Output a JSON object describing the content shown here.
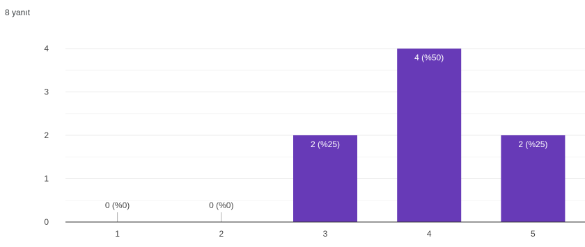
{
  "summary": {
    "responses": "8 yanıt"
  },
  "chart_data": {
    "type": "bar",
    "categories": [
      "1",
      "2",
      "3",
      "4",
      "5"
    ],
    "values": [
      0,
      0,
      2,
      4,
      2
    ],
    "data_labels": [
      "0 (%0)",
      "0 (%0)",
      "2 (%25)",
      "4 (%50)",
      "2 (%25)"
    ],
    "yticks": [
      "0",
      "1",
      "2",
      "3",
      "4"
    ],
    "ylim": [
      0,
      4
    ],
    "title": "",
    "xlabel": "",
    "ylabel": "",
    "grid": true,
    "colors": {
      "bar": "#673ab7",
      "grid": "#ebebeb",
      "axis": "#333333",
      "label_inside": "#ffffff",
      "label_outside": "#444444"
    }
  }
}
